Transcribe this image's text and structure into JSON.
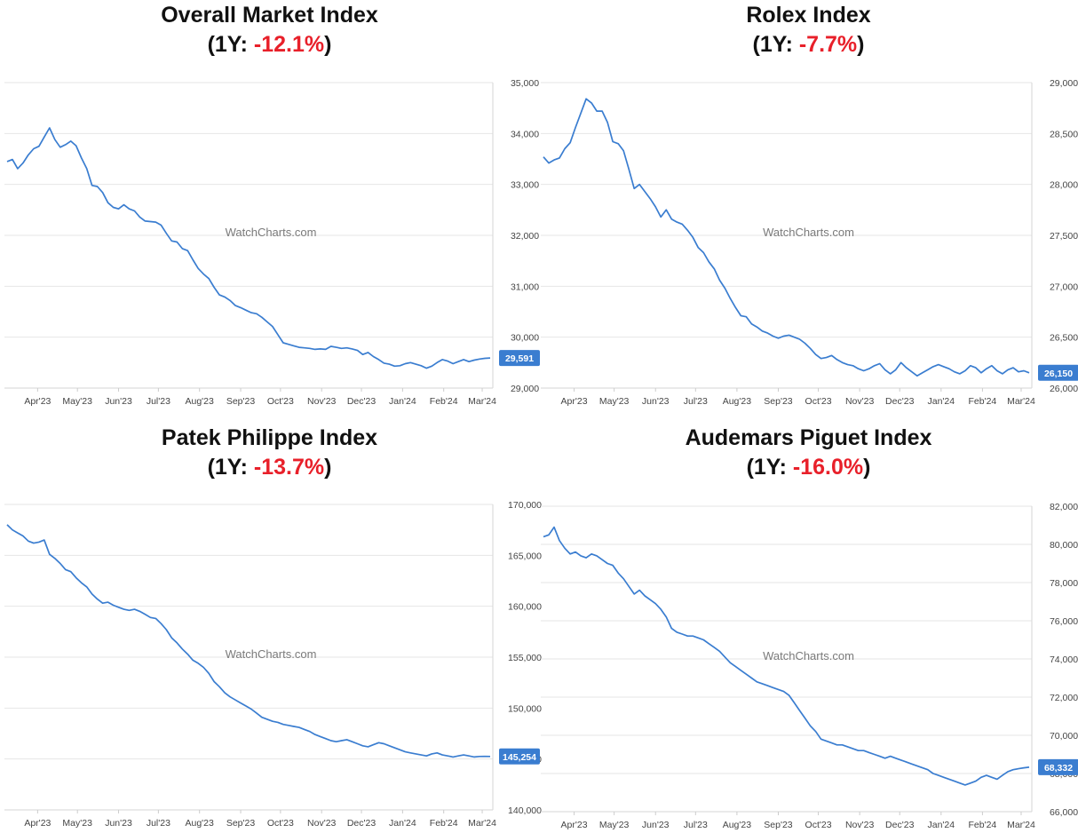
{
  "watermark": "WatchCharts.com",
  "chart_data": [
    {
      "type": "line",
      "title": "Overall Market Index",
      "subtitle_prefix": "(1Y: ",
      "change": "-12.1%",
      "subtitle_suffix": ")",
      "x_ticks": [
        "Apr'23",
        "May'23",
        "Jun'23",
        "Jul'23",
        "Aug'23",
        "Sep'23",
        "Oct'23",
        "Nov'23",
        "Dec'23",
        "Jan'24",
        "Feb'24",
        "Mar'24"
      ],
      "y_ticks": [
        "29,000",
        "30,000",
        "31,000",
        "32,000",
        "33,000",
        "34,000",
        "35,000"
      ],
      "ylim": [
        29000,
        35000
      ],
      "last_value_label": "29,591",
      "series": [
        {
          "x": [
            "2023-03-09",
            "2023-03-13",
            "2023-03-17",
            "2023-03-21",
            "2023-03-25",
            "2023-03-29",
            "2023-04-02",
            "2023-04-06",
            "2023-04-10",
            "2023-04-14",
            "2023-04-18",
            "2023-04-22",
            "2023-04-26",
            "2023-04-30",
            "2023-05-04",
            "2023-05-08",
            "2023-05-12",
            "2023-05-16",
            "2023-05-20",
            "2023-05-24",
            "2023-05-28",
            "2023-06-01",
            "2023-06-05",
            "2023-06-09",
            "2023-06-13",
            "2023-06-17",
            "2023-06-21",
            "2023-06-25",
            "2023-06-29",
            "2023-07-03",
            "2023-07-07",
            "2023-07-11",
            "2023-07-15",
            "2023-07-19",
            "2023-07-23",
            "2023-07-27",
            "2023-07-31",
            "2023-08-04",
            "2023-08-08",
            "2023-08-12",
            "2023-08-16",
            "2023-08-20",
            "2023-08-24",
            "2023-08-28",
            "2023-09-01",
            "2023-09-05",
            "2023-09-09",
            "2023-09-13",
            "2023-09-17",
            "2023-09-21",
            "2023-09-25",
            "2023-09-29",
            "2023-10-03",
            "2023-10-07",
            "2023-10-11",
            "2023-10-15",
            "2023-10-19",
            "2023-10-23",
            "2023-10-27",
            "2023-10-31",
            "2023-11-04",
            "2023-11-08",
            "2023-11-12",
            "2023-11-16",
            "2023-11-20",
            "2023-11-24",
            "2023-11-28",
            "2023-12-02",
            "2023-12-06",
            "2023-12-10",
            "2023-12-14",
            "2023-12-18",
            "2023-12-22",
            "2023-12-26",
            "2023-12-30",
            "2024-01-03",
            "2024-01-07",
            "2024-01-11",
            "2024-01-15",
            "2024-01-19",
            "2024-01-23",
            "2024-01-27",
            "2024-01-31",
            "2024-02-04",
            "2024-02-08",
            "2024-02-12",
            "2024-02-16",
            "2024-02-20",
            "2024-02-24",
            "2024-02-28",
            "2024-03-03",
            "2024-03-07"
          ],
          "values": [
            33450,
            33490,
            33310,
            33420,
            33580,
            33700,
            33750,
            33930,
            34110,
            33880,
            33730,
            33780,
            33850,
            33760,
            33520,
            33310,
            32980,
            32960,
            32840,
            32640,
            32550,
            32520,
            32600,
            32520,
            32480,
            32360,
            32280,
            32270,
            32260,
            32200,
            32040,
            31890,
            31870,
            31740,
            31700,
            31520,
            31350,
            31240,
            31150,
            30980,
            30830,
            30790,
            30720,
            30620,
            30580,
            30530,
            30480,
            30460,
            30390,
            30300,
            30210,
            30050,
            29890,
            29860,
            29830,
            29800,
            29790,
            29780,
            29760,
            29770,
            29760,
            29820,
            29800,
            29780,
            29790,
            29770,
            29740,
            29660,
            29700,
            29620,
            29560,
            29490,
            29470,
            29430,
            29440,
            29480,
            29500,
            29470,
            29440,
            29390,
            29430,
            29500,
            29560,
            29530,
            29480,
            29520,
            29560,
            29520,
            29550,
            29570,
            29585,
            29591
          ]
        }
      ]
    },
    {
      "type": "line",
      "title": "Rolex Index",
      "subtitle_prefix": "(1Y: ",
      "change": "-7.7%",
      "subtitle_suffix": ")",
      "x_ticks": [
        "Apr'23",
        "May'23",
        "Jun'23",
        "Jul'23",
        "Aug'23",
        "Sep'23",
        "Oct'23",
        "Nov'23",
        "Dec'23",
        "Jan'24",
        "Feb'24",
        "Mar'24"
      ],
      "y_ticks": [
        "26,000",
        "26,500",
        "27,000",
        "27,500",
        "28,000",
        "28,500",
        "29,000"
      ],
      "ylim": [
        26000,
        29000
      ],
      "last_value_label": "26,150",
      "series": [
        {
          "x": [
            "2023-03-09",
            "2023-03-13",
            "2023-03-17",
            "2023-03-21",
            "2023-03-25",
            "2023-03-29",
            "2023-04-02",
            "2023-04-06",
            "2023-04-10",
            "2023-04-14",
            "2023-04-18",
            "2023-04-22",
            "2023-04-26",
            "2023-04-30",
            "2023-05-04",
            "2023-05-08",
            "2023-05-12",
            "2023-05-16",
            "2023-05-20",
            "2023-05-24",
            "2023-05-28",
            "2023-06-01",
            "2023-06-05",
            "2023-06-09",
            "2023-06-13",
            "2023-06-17",
            "2023-06-21",
            "2023-06-25",
            "2023-06-29",
            "2023-07-03",
            "2023-07-07",
            "2023-07-11",
            "2023-07-15",
            "2023-07-19",
            "2023-07-23",
            "2023-07-27",
            "2023-07-31",
            "2023-08-04",
            "2023-08-08",
            "2023-08-12",
            "2023-08-16",
            "2023-08-20",
            "2023-08-24",
            "2023-08-28",
            "2023-09-01",
            "2023-09-05",
            "2023-09-09",
            "2023-09-13",
            "2023-09-17",
            "2023-09-21",
            "2023-09-25",
            "2023-09-29",
            "2023-10-03",
            "2023-10-07",
            "2023-10-11",
            "2023-10-15",
            "2023-10-19",
            "2023-10-23",
            "2023-10-27",
            "2023-10-31",
            "2023-11-04",
            "2023-11-08",
            "2023-11-12",
            "2023-11-16",
            "2023-11-20",
            "2023-11-24",
            "2023-11-28",
            "2023-12-02",
            "2023-12-06",
            "2023-12-10",
            "2023-12-14",
            "2023-12-18",
            "2023-12-22",
            "2023-12-26",
            "2023-12-30",
            "2024-01-03",
            "2024-01-07",
            "2024-01-11",
            "2024-01-15",
            "2024-01-19",
            "2024-01-23",
            "2024-01-27",
            "2024-01-31",
            "2024-02-04",
            "2024-02-08",
            "2024-02-12",
            "2024-02-16",
            "2024-02-20",
            "2024-02-24",
            "2024-02-28",
            "2024-03-03",
            "2024-03-07"
          ],
          "values": [
            28270,
            28210,
            28240,
            28260,
            28350,
            28410,
            28560,
            28700,
            28840,
            28800,
            28720,
            28720,
            28610,
            28420,
            28400,
            28330,
            28150,
            27960,
            28000,
            27930,
            27860,
            27780,
            27680,
            27750,
            27660,
            27630,
            27610,
            27550,
            27480,
            27380,
            27330,
            27240,
            27170,
            27060,
            26980,
            26880,
            26790,
            26710,
            26700,
            26630,
            26600,
            26560,
            26540,
            26510,
            26490,
            26510,
            26520,
            26500,
            26480,
            26440,
            26390,
            26330,
            26290,
            26300,
            26320,
            26280,
            26250,
            26230,
            26220,
            26190,
            26170,
            26190,
            26220,
            26240,
            26180,
            26140,
            26180,
            26250,
            26200,
            26160,
            26120,
            26150,
            26180,
            26210,
            26230,
            26210,
            26190,
            26160,
            26140,
            26170,
            26220,
            26200,
            26150,
            26190,
            26220,
            26170,
            26140,
            26180,
            26200,
            26160,
            26170,
            26150
          ]
        }
      ]
    },
    {
      "type": "line",
      "title": "Patek Philippe Index",
      "subtitle_prefix": "(1Y: ",
      "change": "-13.7%",
      "subtitle_suffix": ")",
      "x_ticks": [
        "Apr'23",
        "May'23",
        "Jun'23",
        "Jul'23",
        "Aug'23",
        "Sep'23",
        "Oct'23",
        "Nov'23",
        "Dec'23",
        "Jan'24",
        "Feb'24",
        "Mar'24"
      ],
      "y_ticks": [
        "140,000",
        "145,000",
        "150,000",
        "155,000",
        "160,000",
        "165,000",
        "170,000"
      ],
      "ylim": [
        140000,
        170000
      ],
      "last_value_label": "145,254",
      "series": [
        {
          "x": [
            "2023-03-09",
            "2023-03-13",
            "2023-03-17",
            "2023-03-21",
            "2023-03-25",
            "2023-03-29",
            "2023-04-02",
            "2023-04-06",
            "2023-04-10",
            "2023-04-14",
            "2023-04-18",
            "2023-04-22",
            "2023-04-26",
            "2023-04-30",
            "2023-05-04",
            "2023-05-08",
            "2023-05-12",
            "2023-05-16",
            "2023-05-20",
            "2023-05-24",
            "2023-05-28",
            "2023-06-01",
            "2023-06-05",
            "2023-06-09",
            "2023-06-13",
            "2023-06-17",
            "2023-06-21",
            "2023-06-25",
            "2023-06-29",
            "2023-07-03",
            "2023-07-07",
            "2023-07-11",
            "2023-07-15",
            "2023-07-19",
            "2023-07-23",
            "2023-07-27",
            "2023-07-31",
            "2023-08-04",
            "2023-08-08",
            "2023-08-12",
            "2023-08-16",
            "2023-08-20",
            "2023-08-24",
            "2023-08-28",
            "2023-09-01",
            "2023-09-05",
            "2023-09-09",
            "2023-09-13",
            "2023-09-17",
            "2023-09-21",
            "2023-09-25",
            "2023-09-29",
            "2023-10-03",
            "2023-10-07",
            "2023-10-11",
            "2023-10-15",
            "2023-10-19",
            "2023-10-23",
            "2023-10-27",
            "2023-10-31",
            "2023-11-04",
            "2023-11-08",
            "2023-11-12",
            "2023-11-16",
            "2023-11-20",
            "2023-11-24",
            "2023-11-28",
            "2023-12-02",
            "2023-12-06",
            "2023-12-10",
            "2023-12-14",
            "2023-12-18",
            "2023-12-22",
            "2023-12-26",
            "2023-12-30",
            "2024-01-03",
            "2024-01-07",
            "2024-01-11",
            "2024-01-15",
            "2024-01-19",
            "2024-01-23",
            "2024-01-27",
            "2024-01-31",
            "2024-02-04",
            "2024-02-08",
            "2024-02-12",
            "2024-02-16",
            "2024-02-20",
            "2024-02-24",
            "2024-02-28",
            "2024-03-03",
            "2024-03-07"
          ],
          "values": [
            168000,
            167500,
            167200,
            166900,
            166400,
            166200,
            166300,
            166500,
            165100,
            164700,
            164200,
            163600,
            163400,
            162800,
            162300,
            161900,
            161200,
            160700,
            160300,
            160400,
            160100,
            159900,
            159700,
            159600,
            159700,
            159500,
            159200,
            158900,
            158800,
            158300,
            157700,
            156900,
            156400,
            155800,
            155300,
            154700,
            154400,
            154000,
            153400,
            152600,
            152100,
            151500,
            151100,
            150800,
            150500,
            150200,
            149900,
            149500,
            149100,
            148900,
            148700,
            148600,
            148400,
            148300,
            148200,
            148100,
            147900,
            147700,
            147400,
            147200,
            147000,
            146800,
            146700,
            146800,
            146900,
            146700,
            146500,
            146300,
            146200,
            146400,
            146600,
            146500,
            146300,
            146100,
            145900,
            145700,
            145600,
            145500,
            145400,
            145300,
            145500,
            145600,
            145400,
            145300,
            145200,
            145300,
            145400,
            145300,
            145200,
            145250,
            145260,
            145254
          ]
        }
      ]
    },
    {
      "type": "line",
      "title": "Audemars Piguet Index",
      "subtitle_prefix": "(1Y: ",
      "change": "-16.0%",
      "subtitle_suffix": ")",
      "x_ticks": [
        "Apr'23",
        "May'23",
        "Jun'23",
        "Jul'23",
        "Aug'23",
        "Sep'23",
        "Oct'23",
        "Nov'23",
        "Dec'23",
        "Jan'24",
        "Feb'24",
        "Mar'24"
      ],
      "y_ticks": [
        "66,000",
        "68,000",
        "70,000",
        "72,000",
        "74,000",
        "76,000",
        "78,000",
        "80,000",
        "82,000"
      ],
      "ylim": [
        66000,
        82000
      ],
      "last_value_label": "68,332",
      "series": [
        {
          "x": [
            "2023-03-09",
            "2023-03-13",
            "2023-03-17",
            "2023-03-21",
            "2023-03-25",
            "2023-03-29",
            "2023-04-02",
            "2023-04-06",
            "2023-04-10",
            "2023-04-14",
            "2023-04-18",
            "2023-04-22",
            "2023-04-26",
            "2023-04-30",
            "2023-05-04",
            "2023-05-08",
            "2023-05-12",
            "2023-05-16",
            "2023-05-20",
            "2023-05-24",
            "2023-05-28",
            "2023-06-01",
            "2023-06-05",
            "2023-06-09",
            "2023-06-13",
            "2023-06-17",
            "2023-06-21",
            "2023-06-25",
            "2023-06-29",
            "2023-07-03",
            "2023-07-07",
            "2023-07-11",
            "2023-07-15",
            "2023-07-19",
            "2023-07-23",
            "2023-07-27",
            "2023-07-31",
            "2023-08-04",
            "2023-08-08",
            "2023-08-12",
            "2023-08-16",
            "2023-08-20",
            "2023-08-24",
            "2023-08-28",
            "2023-09-01",
            "2023-09-05",
            "2023-09-09",
            "2023-09-13",
            "2023-09-17",
            "2023-09-21",
            "2023-09-25",
            "2023-09-29",
            "2023-10-03",
            "2023-10-07",
            "2023-10-11",
            "2023-10-15",
            "2023-10-19",
            "2023-10-23",
            "2023-10-27",
            "2023-10-31",
            "2023-11-04",
            "2023-11-08",
            "2023-11-12",
            "2023-11-16",
            "2023-11-20",
            "2023-11-24",
            "2023-11-28",
            "2023-12-02",
            "2023-12-06",
            "2023-12-10",
            "2023-12-14",
            "2023-12-18",
            "2023-12-22",
            "2023-12-26",
            "2023-12-30",
            "2024-01-03",
            "2024-01-07",
            "2024-01-11",
            "2024-01-15",
            "2024-01-19",
            "2024-01-23",
            "2024-01-27",
            "2024-01-31",
            "2024-02-04",
            "2024-02-08",
            "2024-02-12",
            "2024-02-16",
            "2024-02-20",
            "2024-02-24",
            "2024-02-28",
            "2024-03-03",
            "2024-03-07"
          ],
          "values": [
            80400,
            80500,
            80900,
            80200,
            79800,
            79500,
            79600,
            79400,
            79300,
            79500,
            79400,
            79200,
            79000,
            78900,
            78500,
            78200,
            77800,
            77400,
            77600,
            77300,
            77100,
            76900,
            76600,
            76200,
            75600,
            75400,
            75300,
            75200,
            75200,
            75100,
            75000,
            74800,
            74600,
            74400,
            74100,
            73800,
            73600,
            73400,
            73200,
            73000,
            72800,
            72700,
            72600,
            72500,
            72400,
            72300,
            72100,
            71700,
            71300,
            70900,
            70500,
            70200,
            69800,
            69700,
            69600,
            69500,
            69500,
            69400,
            69300,
            69200,
            69200,
            69100,
            69000,
            68900,
            68800,
            68900,
            68800,
            68700,
            68600,
            68500,
            68400,
            68300,
            68200,
            68000,
            67900,
            67800,
            67700,
            67600,
            67500,
            67400,
            67500,
            67600,
            67800,
            67900,
            67800,
            67700,
            67900,
            68100,
            68200,
            68250,
            68300,
            68332
          ]
        }
      ]
    }
  ]
}
